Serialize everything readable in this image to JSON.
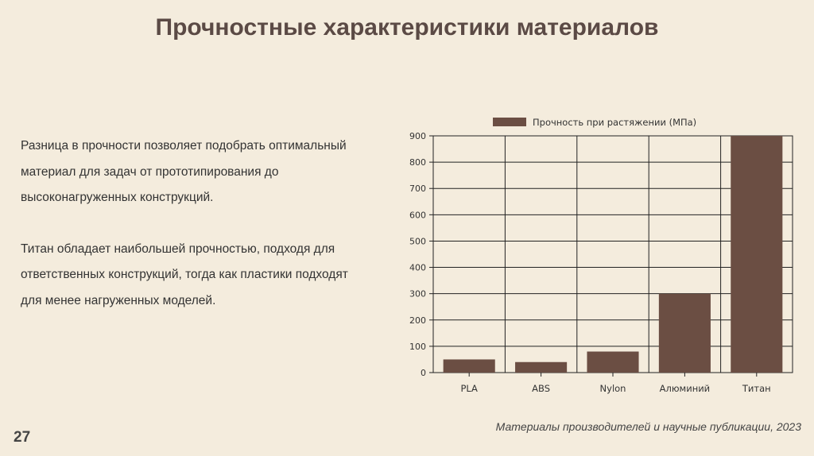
{
  "slide": {
    "title": "Прочностные характеристики материалов",
    "paragraphs": [
      "Разница в прочности позволяет подобрать оптимальный материал для задач от прототипирования до высоконагруженных конструкций.",
      "Титан обладает наибольшей прочностью, подходя для ответственных конструкций, тогда как пластики подходят для менее нагруженных моделей."
    ],
    "source": "Материалы производителей и научные публикации, 2023",
    "page_number": "27"
  },
  "colors": {
    "background": "#f4ecdd",
    "title": "#5b4a45",
    "bar": "#6b4e43"
  },
  "chart_data": {
    "type": "bar",
    "title": "",
    "xlabel": "",
    "ylabel": "",
    "categories": [
      "PLA",
      "ABS",
      "Nylon",
      "Алюминий",
      "Титан"
    ],
    "series": [
      {
        "name": "Прочность при растяжении (МПа)",
        "values": [
          50,
          40,
          80,
          300,
          900
        ]
      }
    ],
    "ylim": [
      0,
      900
    ],
    "yticks": [
      0,
      100,
      200,
      300,
      400,
      500,
      600,
      700,
      800,
      900
    ],
    "grid": true,
    "legend": "top"
  }
}
